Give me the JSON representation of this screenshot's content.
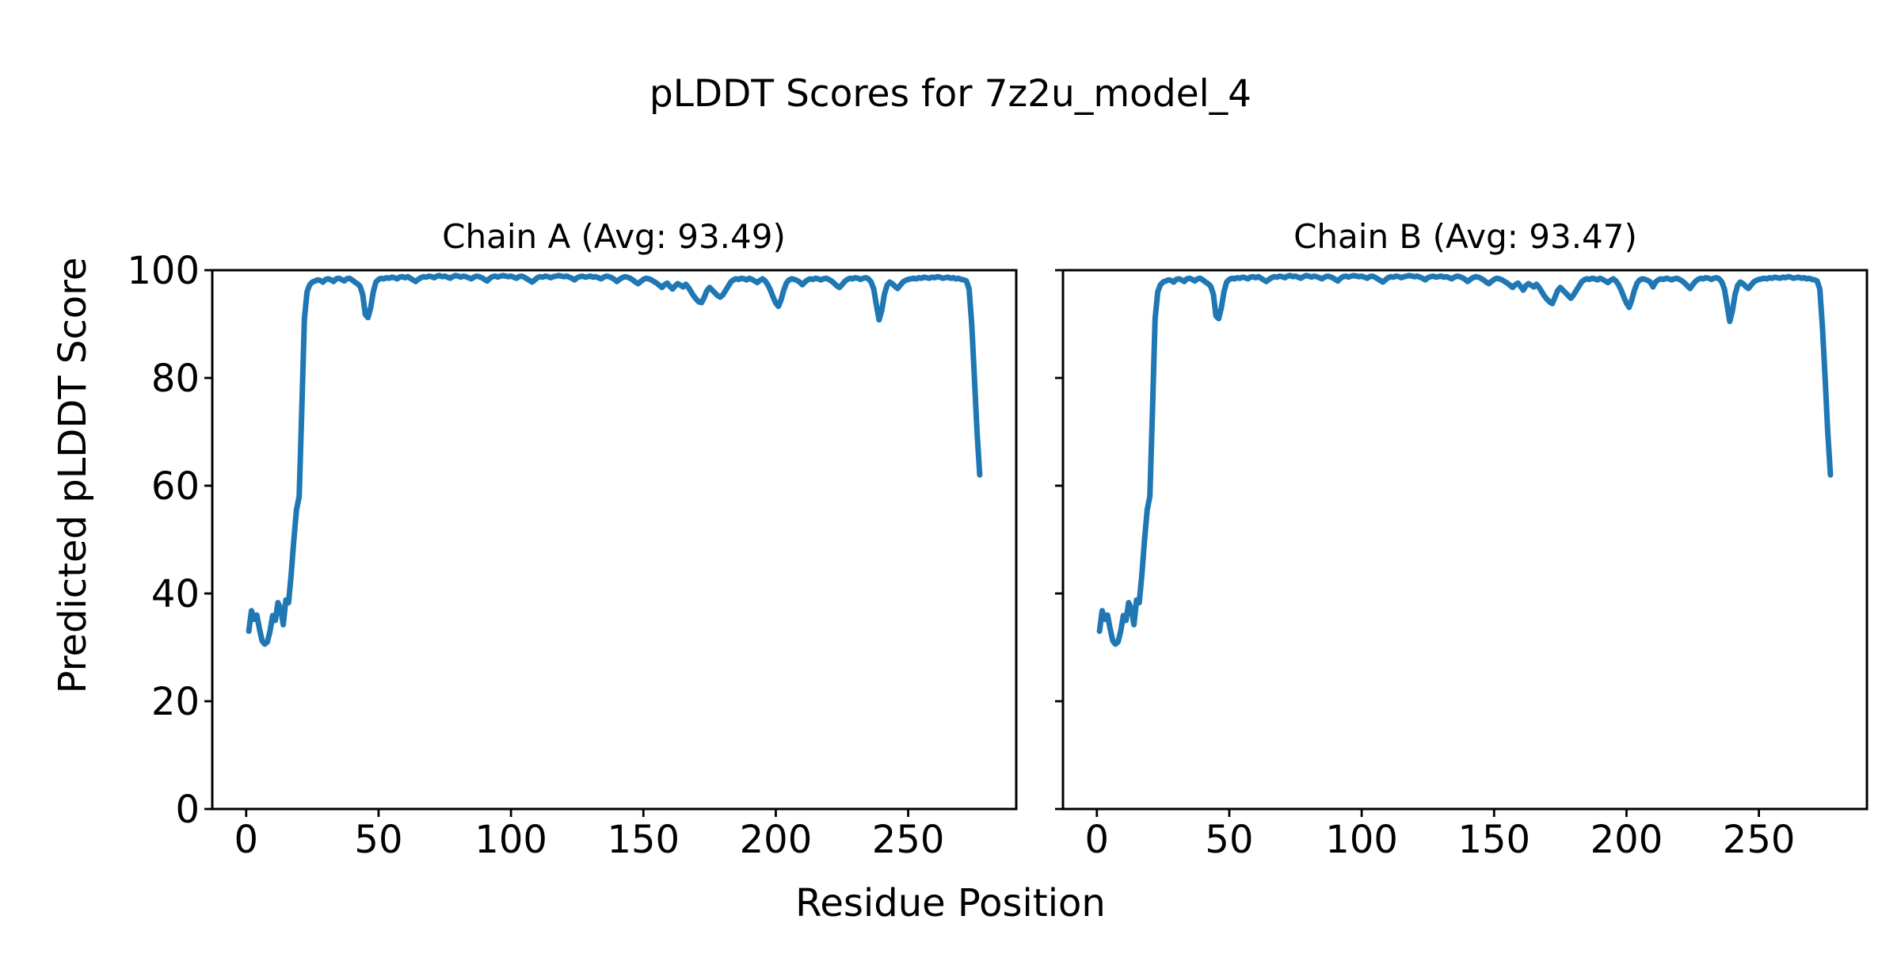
{
  "figure": {
    "suptitle": "pLDDT Scores for 7z2u_model_4",
    "xlabel": "Residue Position",
    "ylabel": "Predicted pLDDT Score",
    "background_color": "#ffffff",
    "line_color": "#1f77b4",
    "axis_color": "#000000",
    "text_color": "#000000"
  },
  "chart_data": [
    {
      "type": "line",
      "title": "Chain A (Avg: 93.49)",
      "avg_label": "93.49",
      "xlabel": "Residue Position",
      "ylabel": "Predicted pLDDT Score",
      "xlim": [
        -12.8,
        290.8
      ],
      "ylim": [
        0,
        100
      ],
      "xticks": [
        0,
        50,
        100,
        150,
        200,
        250
      ],
      "yticks": [
        0,
        20,
        40,
        60,
        80,
        100
      ],
      "show_ytick_labels": true,
      "grid": false,
      "legend": "none",
      "x_start": 1,
      "values": [
        33.0,
        36.8,
        35.2,
        36.0,
        33.5,
        31.2,
        30.6,
        31.0,
        33.0,
        35.9,
        35.0,
        38.3,
        37.2,
        34.2,
        38.8,
        38.3,
        43.5,
        50.0,
        55.5,
        58.0,
        74.0,
        91.0,
        96.0,
        97.3,
        97.8,
        98.0,
        98.2,
        98.1,
        97.8,
        98.3,
        98.4,
        98.2,
        97.9,
        98.4,
        98.5,
        98.3,
        98.0,
        98.4,
        98.5,
        98.2,
        97.8,
        97.5,
        97.0,
        95.5,
        91.8,
        91.2,
        93.0,
        96.0,
        97.8,
        98.3,
        98.5,
        98.4,
        98.6,
        98.5,
        98.7,
        98.6,
        98.4,
        98.7,
        98.8,
        98.6,
        98.8,
        98.5,
        98.2,
        97.9,
        98.3,
        98.6,
        98.8,
        98.7,
        98.9,
        98.8,
        98.6,
        98.9,
        99.0,
        98.8,
        98.9,
        98.7,
        98.5,
        98.8,
        99.0,
        98.9,
        98.7,
        98.9,
        98.8,
        98.6,
        98.4,
        98.7,
        98.9,
        98.8,
        98.6,
        98.3,
        98.0,
        98.5,
        98.8,
        98.9,
        98.7,
        98.9,
        99.0,
        98.9,
        98.8,
        98.9,
        98.7,
        98.5,
        98.8,
        98.9,
        98.7,
        98.4,
        98.1,
        97.8,
        98.2,
        98.6,
        98.8,
        98.7,
        98.9,
        98.8,
        98.6,
        98.8,
        98.9,
        99.0,
        98.9,
        98.8,
        98.9,
        98.7,
        98.5,
        98.2,
        98.6,
        98.8,
        98.9,
        98.7,
        98.8,
        98.9,
        98.7,
        98.8,
        98.6,
        98.4,
        98.7,
        98.9,
        98.8,
        98.6,
        98.3,
        97.9,
        98.3,
        98.6,
        98.8,
        98.7,
        98.5,
        98.2,
        97.8,
        97.5,
        97.9,
        98.3,
        98.5,
        98.4,
        98.2,
        97.9,
        97.6,
        97.2,
        96.8,
        97.3,
        97.6,
        97.0,
        96.5,
        97.1,
        97.5,
        97.2,
        96.9,
        97.4,
        96.8,
        96.0,
        95.2,
        94.6,
        94.1,
        94.0,
        95.0,
        96.2,
        96.8,
        96.3,
        95.8,
        95.3,
        95.0,
        95.4,
        96.2,
        97.0,
        97.8,
        98.2,
        98.4,
        98.3,
        98.5,
        98.4,
        98.2,
        98.5,
        98.3,
        98.0,
        97.7,
        98.1,
        98.4,
        98.0,
        97.3,
        96.3,
        95.0,
        93.9,
        93.3,
        94.5,
        96.3,
        97.6,
        98.2,
        98.4,
        98.3,
        98.1,
        97.8,
        97.3,
        97.8,
        98.2,
        98.4,
        98.3,
        98.5,
        98.4,
        98.2,
        98.4,
        98.5,
        98.3,
        98.0,
        97.6,
        97.1,
        96.8,
        97.3,
        97.9,
        98.3,
        98.5,
        98.4,
        98.6,
        98.5,
        98.3,
        98.5,
        98.6,
        98.4,
        97.8,
        96.5,
        93.5,
        90.8,
        92.5,
        95.5,
        97.2,
        97.8,
        97.5,
        97.0,
        96.6,
        97.2,
        97.8,
        98.1,
        98.3,
        98.4,
        98.5,
        98.4,
        98.6,
        98.5,
        98.7,
        98.6,
        98.5,
        98.7,
        98.6,
        98.8,
        98.7,
        98.5,
        98.6,
        98.7,
        98.5,
        98.6,
        98.4,
        98.5,
        98.3,
        98.2,
        98.0,
        96.5,
        90.0,
        80.0,
        70.0,
        62.0
      ]
    },
    {
      "type": "line",
      "title": "Chain B (Avg: 93.47)",
      "avg_label": "93.47",
      "xlabel": "Residue Position",
      "ylabel": "Predicted pLDDT Score",
      "xlim": [
        -12.8,
        290.8
      ],
      "ylim": [
        0,
        100
      ],
      "xticks": [
        0,
        50,
        100,
        150,
        200,
        250
      ],
      "yticks": [
        0,
        20,
        40,
        60,
        80,
        100
      ],
      "show_ytick_labels": false,
      "grid": false,
      "legend": "none",
      "x_start": 1,
      "values": [
        33.0,
        36.8,
        35.2,
        36.0,
        33.5,
        31.2,
        30.6,
        31.0,
        33.0,
        35.9,
        35.0,
        38.3,
        37.2,
        34.2,
        38.8,
        38.3,
        43.5,
        50.0,
        55.5,
        58.0,
        74.0,
        91.0,
        96.0,
        97.3,
        97.8,
        98.0,
        98.2,
        98.1,
        97.8,
        98.3,
        98.4,
        98.2,
        97.9,
        98.4,
        98.5,
        98.3,
        98.0,
        98.4,
        98.5,
        98.2,
        97.8,
        97.5,
        97.0,
        95.5,
        91.5,
        91.0,
        93.0,
        96.0,
        97.8,
        98.3,
        98.5,
        98.4,
        98.6,
        98.5,
        98.7,
        98.6,
        98.4,
        98.7,
        98.8,
        98.6,
        98.8,
        98.5,
        98.2,
        97.9,
        98.3,
        98.6,
        98.8,
        98.7,
        98.9,
        98.8,
        98.6,
        98.9,
        99.0,
        98.8,
        98.9,
        98.7,
        98.5,
        98.8,
        99.0,
        98.9,
        98.7,
        98.9,
        98.8,
        98.6,
        98.4,
        98.7,
        98.9,
        98.8,
        98.6,
        98.3,
        98.0,
        98.5,
        98.8,
        98.9,
        98.7,
        98.9,
        99.0,
        98.9,
        98.8,
        98.9,
        98.7,
        98.5,
        98.8,
        98.9,
        98.7,
        98.4,
        98.1,
        97.8,
        98.2,
        98.6,
        98.8,
        98.7,
        98.9,
        98.8,
        98.6,
        98.8,
        98.9,
        99.0,
        98.9,
        98.8,
        98.9,
        98.7,
        98.5,
        98.2,
        98.6,
        98.8,
        98.9,
        98.7,
        98.8,
        98.9,
        98.7,
        98.8,
        98.6,
        98.4,
        98.7,
        98.9,
        98.8,
        98.6,
        98.3,
        97.9,
        98.3,
        98.6,
        98.8,
        98.7,
        98.5,
        98.2,
        97.8,
        97.5,
        97.9,
        98.3,
        98.5,
        98.4,
        98.2,
        97.9,
        97.6,
        97.2,
        96.8,
        97.3,
        97.6,
        97.0,
        96.3,
        97.1,
        97.5,
        97.2,
        96.9,
        97.4,
        96.8,
        96.0,
        95.2,
        94.6,
        94.1,
        93.8,
        95.0,
        96.2,
        96.8,
        96.3,
        95.8,
        95.3,
        94.8,
        95.4,
        96.2,
        97.0,
        97.8,
        98.2,
        98.4,
        98.3,
        98.5,
        98.4,
        98.2,
        98.5,
        98.3,
        98.0,
        97.7,
        98.1,
        98.4,
        98.0,
        97.3,
        96.3,
        95.0,
        93.9,
        93.1,
        94.5,
        96.3,
        97.6,
        98.2,
        98.4,
        98.3,
        98.1,
        97.8,
        96.9,
        97.8,
        98.2,
        98.4,
        98.3,
        98.5,
        98.4,
        98.2,
        98.4,
        98.5,
        98.3,
        98.0,
        97.6,
        97.1,
        96.6,
        97.3,
        97.9,
        98.3,
        98.5,
        98.4,
        98.6,
        98.5,
        98.3,
        98.5,
        98.6,
        98.4,
        97.8,
        96.5,
        93.5,
        90.5,
        92.5,
        95.5,
        97.2,
        97.8,
        97.5,
        97.0,
        96.6,
        97.2,
        97.8,
        98.1,
        98.3,
        98.4,
        98.5,
        98.4,
        98.6,
        98.5,
        98.7,
        98.6,
        98.5,
        98.7,
        98.6,
        98.8,
        98.7,
        98.5,
        98.6,
        98.7,
        98.5,
        98.6,
        98.4,
        98.5,
        98.3,
        98.2,
        98.0,
        96.5,
        89.5,
        80.0,
        70.0,
        62.0
      ]
    }
  ]
}
